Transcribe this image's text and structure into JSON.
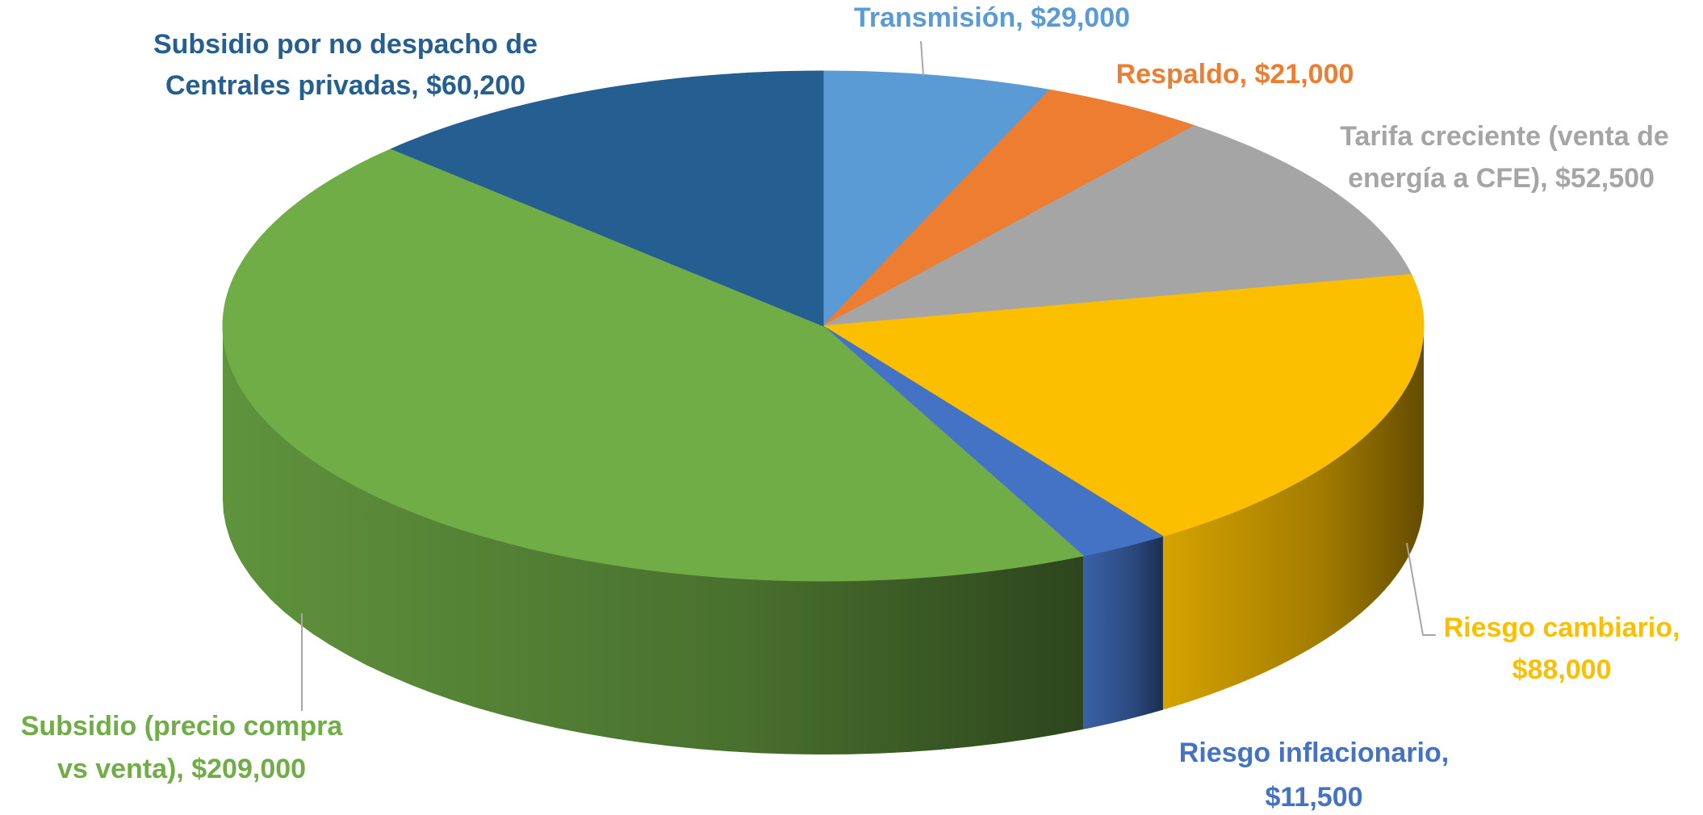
{
  "chart_data": {
    "type": "pie3d",
    "value_labels": [
      [
        "Transmisión, $29,000"
      ],
      [
        "Respaldo, $21,000"
      ],
      [
        "Tarifa creciente (venta de",
        "energía a CFE), $52,500"
      ],
      [
        "Riesgo cambiario,",
        "$88,000"
      ],
      [
        "Riesgo inflacionario,",
        "$11,500"
      ],
      [
        "Subsidio (precio compra",
        "vs venta), $209,000"
      ],
      [
        "Subsidio por no despacho de",
        "Centrales privadas, $60,200"
      ]
    ],
    "values": [
      29000,
      21000,
      52500,
      88000,
      11500,
      209000,
      60200
    ],
    "colors": [
      "#5b9bd5",
      "#ed7d31",
      "#a5a5a5",
      "#fbbf00",
      "#4472c4",
      "#70ad47",
      "#255e91"
    ]
  }
}
